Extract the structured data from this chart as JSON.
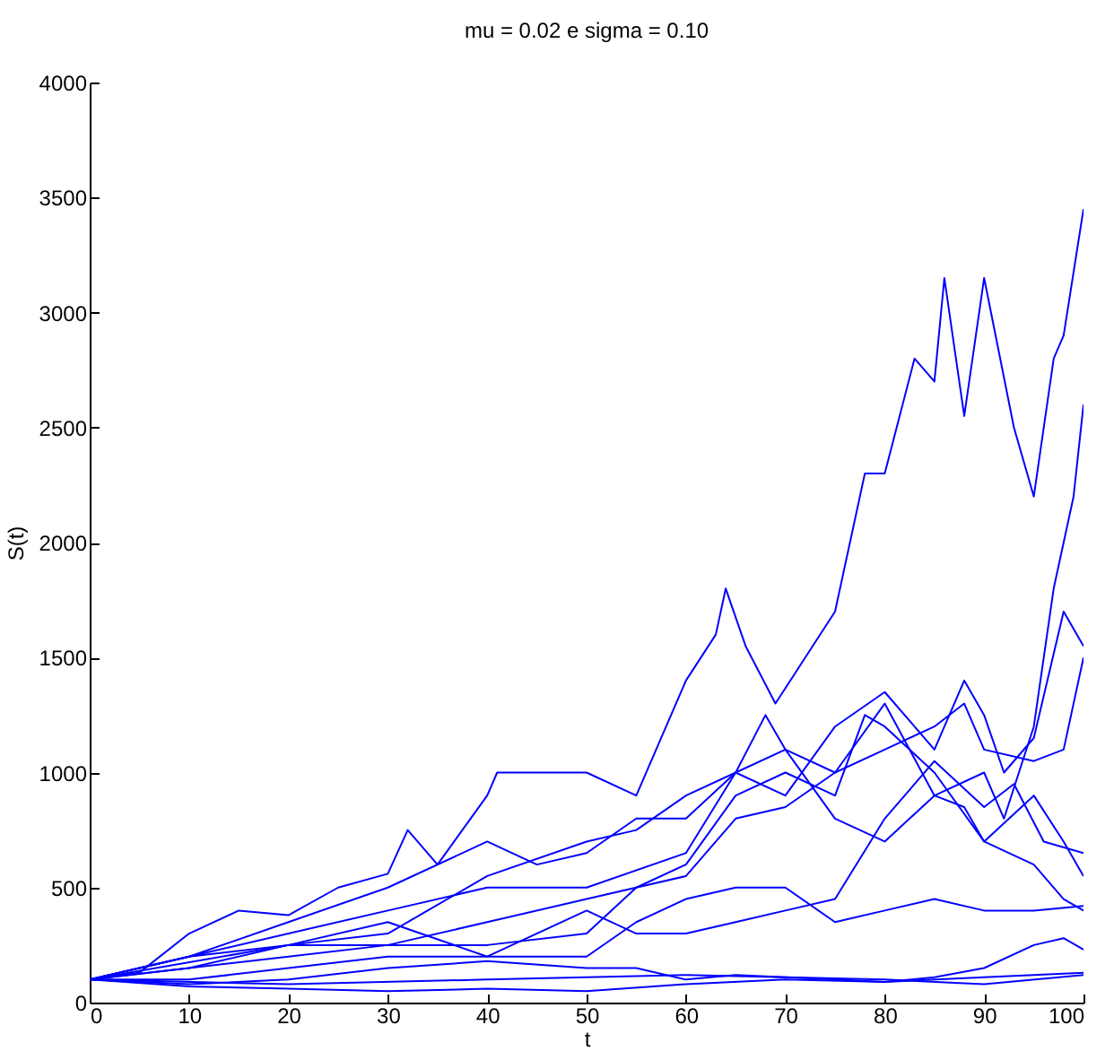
{
  "chart_data": {
    "type": "line",
    "title": "mu = 0.02 e sigma = 0.10",
    "xlabel": "t",
    "ylabel": "S(t)",
    "xlim": [
      0,
      100
    ],
    "ylim": [
      0,
      4000
    ],
    "xticks": [
      0,
      10,
      20,
      30,
      40,
      50,
      60,
      70,
      80,
      90,
      100
    ],
    "yticks": [
      0,
      500,
      1000,
      1500,
      2000,
      2500,
      3000,
      3500,
      4000
    ],
    "grid": false,
    "legend": false,
    "series": [
      {
        "color": "#0000ff",
        "x": [
          0,
          5,
          10,
          15,
          20,
          25,
          30,
          32,
          35,
          40,
          41,
          45,
          50,
          55,
          58,
          60,
          63,
          64,
          66,
          69,
          72,
          75,
          78,
          80,
          83,
          85,
          86,
          88,
          90,
          93,
          95,
          97,
          98,
          100
        ],
        "values": [
          100,
          130,
          300,
          400,
          380,
          500,
          560,
          750,
          600,
          900,
          1000,
          1000,
          1000,
          900,
          1200,
          1400,
          1600,
          1800,
          1550,
          1300,
          1500,
          1700,
          2300,
          2300,
          2800,
          2700,
          3150,
          2550,
          3150,
          2500,
          2200,
          2800,
          2900,
          3450
        ]
      },
      {
        "color": "#0000ff",
        "x": [
          0,
          10,
          20,
          30,
          40,
          50,
          55,
          60,
          65,
          70,
          75,
          80,
          85,
          90,
          92,
          95,
          97,
          99,
          100
        ],
        "values": [
          100,
          150,
          250,
          300,
          550,
          700,
          750,
          900,
          1000,
          1100,
          1000,
          1300,
          900,
          1000,
          800,
          1200,
          1800,
          2200,
          2600
        ]
      },
      {
        "color": "#0000ff",
        "x": [
          0,
          10,
          20,
          30,
          40,
          50,
          60,
          65,
          70,
          75,
          80,
          85,
          88,
          90,
          92,
          95,
          98,
          100
        ],
        "values": [
          100,
          200,
          300,
          400,
          500,
          500,
          650,
          1000,
          900,
          1200,
          1350,
          1100,
          1400,
          1250,
          1000,
          1150,
          1700,
          1550
        ]
      },
      {
        "color": "#0000ff",
        "x": [
          0,
          10,
          20,
          30,
          40,
          50,
          60,
          65,
          70,
          75,
          80,
          85,
          88,
          90,
          95,
          98,
          100
        ],
        "values": [
          100,
          150,
          200,
          250,
          350,
          450,
          550,
          800,
          850,
          1000,
          1100,
          1200,
          1300,
          1100,
          1050,
          1100,
          1500
        ]
      },
      {
        "color": "#0000ff",
        "x": [
          0,
          10,
          20,
          30,
          40,
          45,
          50,
          55,
          60,
          65,
          68,
          70,
          75,
          80,
          85,
          88,
          90,
          95,
          98,
          100
        ],
        "values": [
          100,
          200,
          350,
          500,
          700,
          600,
          650,
          800,
          800,
          1000,
          1250,
          1100,
          800,
          700,
          900,
          850,
          700,
          900,
          700,
          550
        ]
      },
      {
        "color": "#0000ff",
        "x": [
          0,
          20,
          30,
          40,
          50,
          55,
          60,
          65,
          70,
          75,
          78,
          80,
          85,
          90,
          95,
          98,
          100
        ],
        "values": [
          100,
          250,
          250,
          250,
          300,
          500,
          600,
          900,
          1000,
          900,
          1250,
          1200,
          1000,
          700,
          600,
          450,
          400
        ]
      },
      {
        "color": "#0000ff",
        "x": [
          0,
          10,
          20,
          30,
          40,
          50,
          55,
          60,
          65,
          70,
          75,
          80,
          85,
          90,
          93,
          96,
          100
        ],
        "values": [
          100,
          200,
          250,
          350,
          200,
          400,
          300,
          300,
          350,
          400,
          450,
          800,
          1050,
          850,
          950,
          700,
          650
        ]
      },
      {
        "color": "#0000ff",
        "x": [
          0,
          10,
          20,
          30,
          40,
          50,
          55,
          60,
          65,
          70,
          75,
          80,
          85,
          90,
          95,
          100
        ],
        "values": [
          100,
          100,
          150,
          200,
          200,
          200,
          350,
          450,
          500,
          500,
          350,
          400,
          450,
          400,
          400,
          420
        ]
      },
      {
        "color": "#0000ff",
        "x": [
          0,
          10,
          20,
          30,
          40,
          50,
          55,
          60,
          65,
          70,
          75,
          80,
          85,
          90,
          95,
          98,
          100
        ],
        "values": [
          100,
          80,
          100,
          150,
          180,
          150,
          150,
          100,
          120,
          110,
          100,
          90,
          110,
          150,
          250,
          280,
          230
        ]
      },
      {
        "color": "#0000ff",
        "x": [
          0,
          10,
          20,
          30,
          40,
          50,
          60,
          70,
          80,
          90,
          100
        ],
        "values": [
          100,
          70,
          60,
          50,
          60,
          50,
          80,
          100,
          90,
          110,
          130
        ]
      },
      {
        "color": "#0000ff",
        "x": [
          0,
          20,
          40,
          60,
          80,
          90,
          100
        ],
        "values": [
          100,
          80,
          100,
          120,
          100,
          80,
          120
        ]
      }
    ]
  }
}
